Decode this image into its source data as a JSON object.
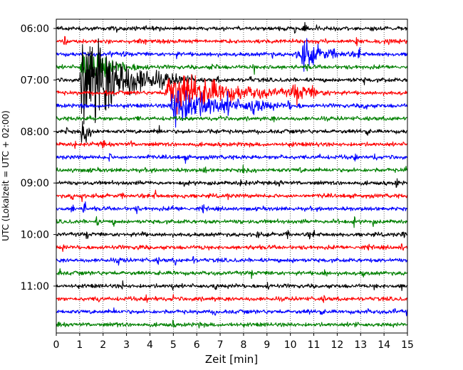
{
  "chart_data": {
    "type": "line",
    "title": "",
    "xlabel": "Zeit  [min]",
    "ylabel": "UTC (Lokalzeit = UTC + 02:00)",
    "xlim": [
      0,
      15
    ],
    "x_ticks": [
      0,
      1,
      2,
      3,
      4,
      5,
      6,
      7,
      8,
      9,
      10,
      11,
      12,
      13,
      14,
      15
    ],
    "x_tick_labels": [
      "0",
      "1",
      "2",
      "3",
      "4",
      "5",
      "6",
      "7",
      "8",
      "9",
      "10",
      "11",
      "12",
      "13",
      "14",
      "15"
    ],
    "y_ticks": [
      {
        "time": "06:00",
        "label": "06:00"
      },
      {
        "time": "07:00",
        "label": "07:00"
      },
      {
        "time": "08:00",
        "label": "08:00"
      },
      {
        "time": "09:00",
        "label": "09:00"
      },
      {
        "time": "10:00",
        "label": "10:00"
      },
      {
        "time": "11:00",
        "label": "11:00"
      }
    ],
    "grid": "vertical dotted at each minute",
    "trace_interval_minutes": 15,
    "trace_color_cycle": [
      "#000000",
      "#ff0000",
      "#0000ff",
      "#008000"
    ],
    "traces": [
      {
        "start": "06:00",
        "color": "#000000"
      },
      {
        "start": "06:15",
        "color": "#ff0000"
      },
      {
        "start": "06:30",
        "color": "#0000ff"
      },
      {
        "start": "06:45",
        "color": "#008000"
      },
      {
        "start": "07:00",
        "color": "#000000"
      },
      {
        "start": "07:15",
        "color": "#ff0000"
      },
      {
        "start": "07:30",
        "color": "#0000ff"
      },
      {
        "start": "07:45",
        "color": "#008000"
      },
      {
        "start": "08:00",
        "color": "#000000"
      },
      {
        "start": "08:15",
        "color": "#ff0000"
      },
      {
        "start": "08:30",
        "color": "#0000ff"
      },
      {
        "start": "08:45",
        "color": "#008000"
      },
      {
        "start": "09:00",
        "color": "#000000"
      },
      {
        "start": "09:15",
        "color": "#ff0000"
      },
      {
        "start": "09:30",
        "color": "#0000ff"
      },
      {
        "start": "09:45",
        "color": "#008000"
      },
      {
        "start": "10:00",
        "color": "#000000"
      },
      {
        "start": "10:15",
        "color": "#ff0000"
      },
      {
        "start": "10:30",
        "color": "#0000ff"
      },
      {
        "start": "10:45",
        "color": "#008000"
      },
      {
        "start": "11:00",
        "color": "#000000"
      },
      {
        "start": "11:15",
        "color": "#ff0000"
      },
      {
        "start": "11:30",
        "color": "#0000ff"
      },
      {
        "start": "11:45",
        "color": "#008000"
      }
    ],
    "events": [
      {
        "trace": "07:00",
        "onset_min": 1.0,
        "peak_min": 1.2,
        "decay_end_min": 6.0,
        "amplitude_traces": 4.0
      },
      {
        "trace": "06:45",
        "onset_min": 1.0,
        "peak_min": 1.2,
        "decay_end_min": 4.0,
        "amplitude_traces": 1.6
      },
      {
        "trace": "06:30",
        "onset_min": 10.2,
        "peak_min": 10.6,
        "decay_end_min": 13.0,
        "amplitude_traces": 0.9
      },
      {
        "trace": "07:15",
        "onset_min": 4.6,
        "peak_min": 4.9,
        "decay_end_min": 12.0,
        "amplitude_traces": 1.5
      },
      {
        "trace": "07:15",
        "onset_min": 10.0,
        "peak_min": 10.2,
        "decay_end_min": 11.5,
        "amplitude_traces": 0.5
      },
      {
        "trace": "07:30",
        "onset_min": 4.8,
        "peak_min": 5.0,
        "decay_end_min": 10.5,
        "amplitude_traces": 1.5
      },
      {
        "trace": "07:30",
        "onset_min": 8.2,
        "peak_min": 8.4,
        "decay_end_min": 9.3,
        "amplitude_traces": 0.5
      },
      {
        "trace": "08:00",
        "onset_min": 1.0,
        "peak_min": 1.1,
        "decay_end_min": 2.0,
        "amplitude_traces": 0.6
      }
    ]
  }
}
